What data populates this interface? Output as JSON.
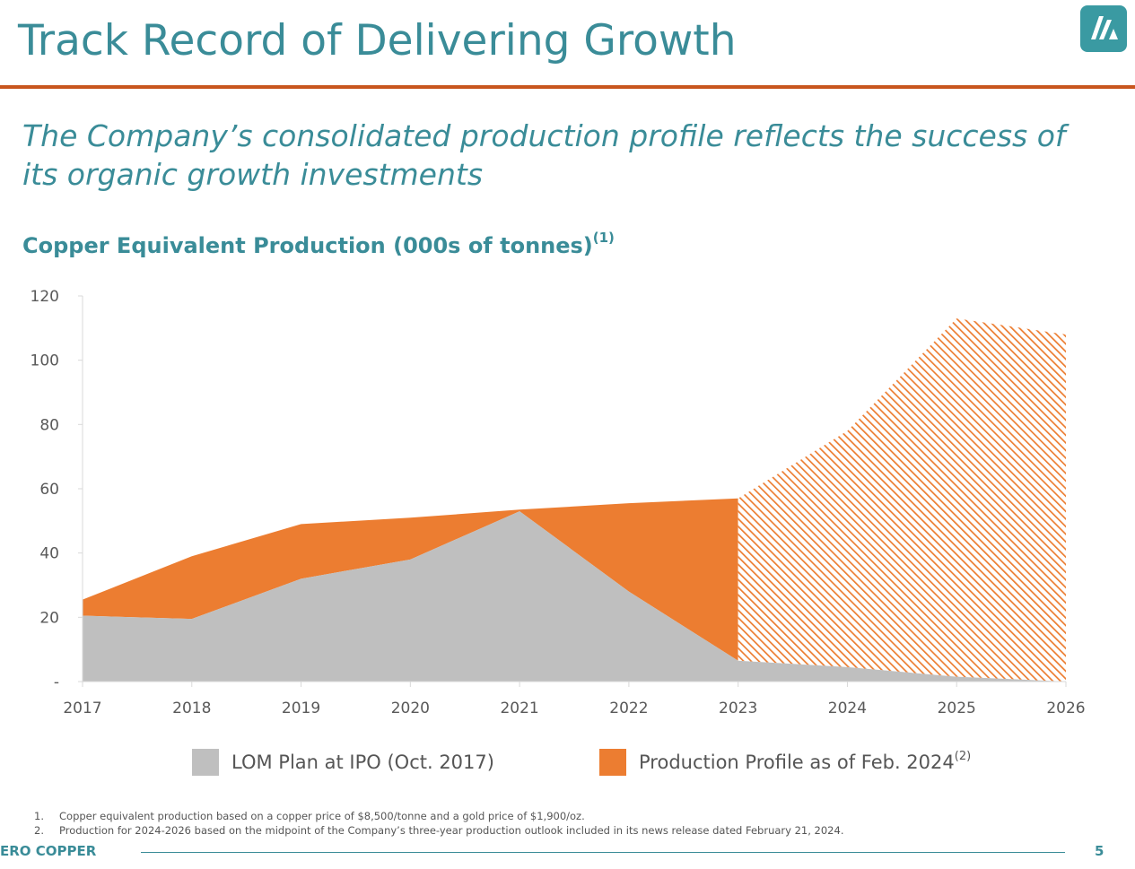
{
  "header": {
    "title": "Track Record of Delivering Growth",
    "subtitle": "The Company’s consolidated production profile reflects the success of its organic growth investments"
  },
  "colors": {
    "teal": "#3a8c98",
    "orange": "#ec7d31",
    "gray": "#bfbfbf",
    "rule": "#c8551d"
  },
  "chart_heading": {
    "text": "Copper Equivalent Production (000s of tonnes)",
    "sup": "(1)"
  },
  "chart_data": {
    "type": "area",
    "x": [
      "2017",
      "2018",
      "2019",
      "2020",
      "2021",
      "2022",
      "2023",
      "2024",
      "2025",
      "2026"
    ],
    "ylim": [
      0,
      120
    ],
    "yticks": [
      0,
      20,
      40,
      60,
      80,
      100,
      120
    ],
    "ytick_labels": [
      "-",
      "20",
      "40",
      "60",
      "80",
      "100",
      "120"
    ],
    "series": [
      {
        "name": "LOM Plan at IPO (Oct. 2017)",
        "color": "#bfbfbf",
        "values": [
          20.5,
          19.5,
          32,
          38,
          53,
          28,
          6.5,
          4.5,
          1.5,
          0
        ]
      },
      {
        "name": "Production Profile as of Feb. 2024",
        "sup": "(2)",
        "color": "#ec7d31",
        "values": [
          25.5,
          39,
          49,
          51,
          53.5,
          55.5,
          57,
          78,
          113,
          108
        ],
        "hatched_from": "2023"
      }
    ]
  },
  "footnotes": [
    {
      "num": "1.",
      "text": "Copper equivalent production based on a copper price of $8,500/tonne and a gold price of $1,900/oz."
    },
    {
      "num": "2.",
      "text": "Production for 2024-2026 based on the midpoint of the Company’s three-year production outlook included in its news release dated February 21, 2024."
    }
  ],
  "footer": {
    "brand": "ERO COPPER",
    "page": "5"
  }
}
